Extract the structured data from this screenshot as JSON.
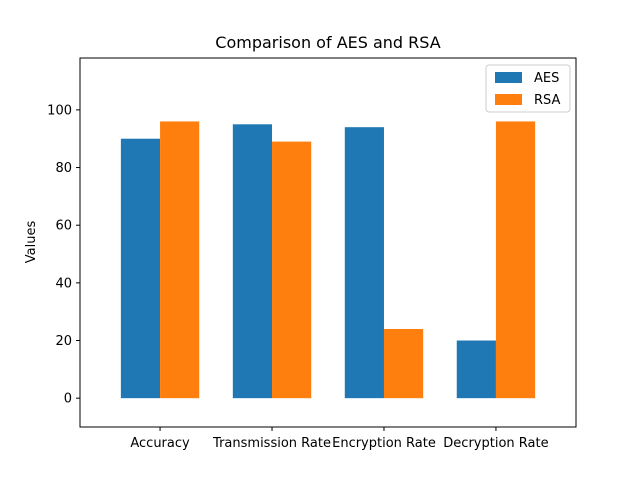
{
  "chart_data": {
    "type": "bar",
    "title": "Comparison of AES and RSA",
    "xlabel": "",
    "ylabel": "Values",
    "categories": [
      "Accuracy",
      "Transmission Rate",
      "Encryption Rate",
      "Decryption Rate"
    ],
    "series": [
      {
        "name": "AES",
        "values": [
          90,
          95,
          94,
          20
        ],
        "color": "#1f77b4"
      },
      {
        "name": "RSA",
        "values": [
          96,
          89,
          24,
          96
        ],
        "color": "#ff7f0e"
      }
    ],
    "ylim": [
      -10,
      118
    ],
    "yticks": [
      0,
      20,
      40,
      60,
      80,
      100
    ],
    "grid": false,
    "legend_position": "top-right"
  }
}
